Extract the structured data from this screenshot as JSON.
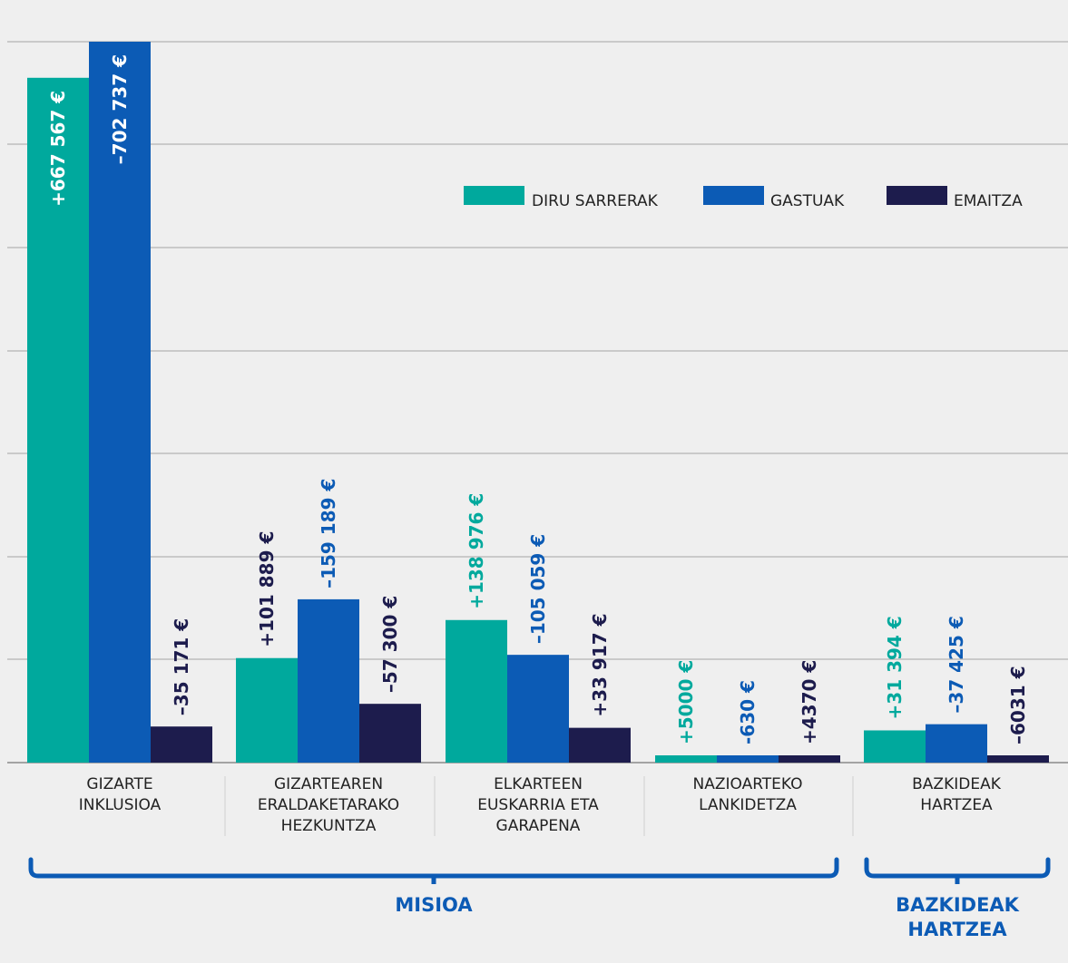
{
  "chart_data": {
    "type": "bar",
    "title": "",
    "xlabel": "",
    "ylabel": "",
    "ylim": [
      0,
      702737
    ],
    "grid": true,
    "legend_position": "top-right",
    "categories": [
      [
        "GIZARTE",
        "INKLUSIOA"
      ],
      [
        "GIZARTEAREN",
        "ERALDAKETARAKO",
        "HEZKUNTZA"
      ],
      [
        "ELKARTEEN",
        "EUSKARRIA ETA",
        "GARAPENA"
      ],
      [
        "NAZIOARTEKO",
        "LANKIDETZA"
      ],
      [
        "BAZKIDEAK",
        "HARTZEA"
      ]
    ],
    "series": [
      {
        "name": "DIRU SARRERAK",
        "color": "#00a99d",
        "values": [
          667567,
          101889,
          138976,
          5000,
          31394
        ],
        "labels": [
          "+667 567 €",
          "+101 889 €",
          "+138 976 €",
          "+5000 €",
          "+31 394 €"
        ]
      },
      {
        "name": "GASTUAK",
        "color": "#0c5bb5",
        "values": [
          702737,
          159189,
          105059,
          630,
          37425
        ],
        "labels": [
          "–702 737 €",
          "–159 189 €",
          "–105 059 €",
          "-630 €",
          "–37 425 €"
        ]
      },
      {
        "name": "EMAITZA",
        "color": "#1d1c4d",
        "values": [
          35171,
          57300,
          33917,
          4370,
          6031
        ],
        "labels": [
          "–35 171 €",
          "–57 300 €",
          "+33 917 €",
          "+4370 €",
          "–6031 €"
        ]
      }
    ],
    "label_colors": [
      [
        "#ffffff",
        "#ffffff",
        "#1d1c4d"
      ],
      [
        "#1d1c4d",
        "#0c5bb5",
        "#1d1c4d"
      ],
      [
        "#00a99d",
        "#0c5bb5",
        "#1d1c4d"
      ],
      [
        "#00a99d",
        "#0c5bb5",
        "#1d1c4d"
      ],
      [
        "#00a99d",
        "#0c5bb5",
        "#1d1c4d"
      ]
    ],
    "groups": [
      {
        "name": "MISIOA",
        "lines": [
          "MISIOA"
        ],
        "categories": [
          0,
          1,
          2,
          3
        ]
      },
      {
        "name": "BAZKIDEAK HARTZEA",
        "lines": [
          "BAZKIDEAK",
          "HARTZEA"
        ],
        "categories": [
          4
        ]
      }
    ]
  }
}
